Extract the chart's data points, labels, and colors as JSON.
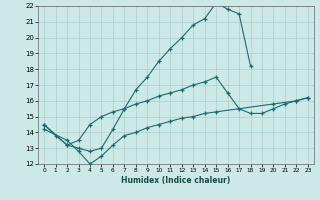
{
  "xlabel": "Humidex (Indice chaleur)",
  "xlim": [
    -0.5,
    23.5
  ],
  "ylim": [
    12,
    22
  ],
  "xticks": [
    0,
    1,
    2,
    3,
    4,
    5,
    6,
    7,
    8,
    9,
    10,
    11,
    12,
    13,
    14,
    15,
    16,
    17,
    18,
    19,
    20,
    21,
    22,
    23
  ],
  "yticks": [
    12,
    13,
    14,
    15,
    16,
    17,
    18,
    19,
    20,
    21,
    22
  ],
  "background_color": "#cce9e7",
  "grid_color": "#aad0ce",
  "line_color": "#1a6b6b",
  "line1_x": [
    0,
    1,
    2,
    3,
    4,
    5,
    6,
    7,
    8,
    9,
    10,
    11,
    12,
    13,
    14,
    15,
    16,
    17,
    18
  ],
  "line1_y": [
    14.5,
    13.8,
    13.2,
    13.0,
    12.8,
    13.0,
    14.2,
    15.5,
    16.7,
    17.5,
    18.5,
    19.3,
    20.0,
    20.8,
    21.2,
    22.2,
    21.8,
    21.5,
    18.2
  ],
  "line2_x": [
    0,
    2,
    3,
    4,
    5,
    6,
    7,
    8,
    9,
    10,
    11,
    12,
    13,
    14,
    15,
    16,
    17,
    18,
    19,
    20,
    21,
    22,
    23
  ],
  "line2_y": [
    14.5,
    13.2,
    13.5,
    14.5,
    15.0,
    15.3,
    15.5,
    15.8,
    16.0,
    16.3,
    16.5,
    16.7,
    17.0,
    17.2,
    17.5,
    16.5,
    15.5,
    15.2,
    15.2,
    15.5,
    15.8,
    16.0,
    16.2
  ],
  "line3_x": [
    0,
    2,
    3,
    4,
    5,
    6,
    7,
    8,
    9,
    10,
    11,
    12,
    13,
    14,
    15,
    20,
    22,
    23
  ],
  "line3_y": [
    14.2,
    13.5,
    12.8,
    12.0,
    12.5,
    13.2,
    13.8,
    14.0,
    14.3,
    14.5,
    14.7,
    14.9,
    15.0,
    15.2,
    15.3,
    15.8,
    16.0,
    16.2
  ]
}
